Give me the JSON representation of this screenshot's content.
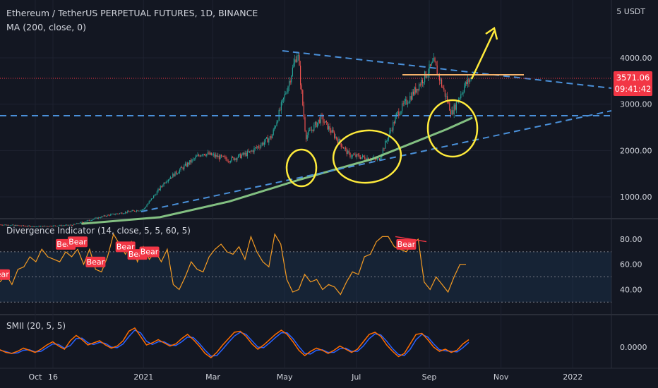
{
  "header": {
    "title": "Ethereum / TetherUS PERPETUAL FUTURES, 1D, BINANCE",
    "ma_label": "MA (200, close, 0)",
    "unit": "5 USDT"
  },
  "price_tag": {
    "price": "3571.06",
    "countdown": "09:41:42",
    "color": "#f23645"
  },
  "colors": {
    "background": "#131722",
    "grid": "#1e2230",
    "up": "#26a69a",
    "down": "#ef5350",
    "ma": "#8fd18c",
    "trendline": "#4a90d9",
    "annotation": "#ffeb3b",
    "resistance": "#f6b26b",
    "divergence": "#f59b22",
    "bear": "#f23645",
    "smii_signal": "#2962ff",
    "smii_main": "#ff6d00"
  },
  "chart_data": [
    {
      "type": "candlestick",
      "panel": "price",
      "symbol": "ETHUSDT",
      "timeframe": "1D",
      "y_ticks": [
        1000,
        2000,
        3000,
        4000
      ],
      "y_tick_labels": [
        "1000.00",
        "2000.00",
        "3000.00",
        "4000.00"
      ],
      "ylim": [
        550,
        4950
      ],
      "x_tick_labels": [
        "Oct",
        "16",
        "2021",
        "Mar",
        "May",
        "Jul",
        "Sep",
        "Nov",
        "2022"
      ],
      "last_price": 3571.06,
      "closes_approx": [
        {
          "date": "2020-09-01",
          "close": 400
        },
        {
          "date": "2020-10-01",
          "close": 360
        },
        {
          "date": "2020-11-01",
          "close": 390
        },
        {
          "date": "2020-12-01",
          "close": 600
        },
        {
          "date": "2021-01-01",
          "close": 730
        },
        {
          "date": "2021-01-20",
          "close": 1350
        },
        {
          "date": "2021-02-20",
          "close": 1950
        },
        {
          "date": "2021-03-15",
          "close": 1800
        },
        {
          "date": "2021-04-01",
          "close": 1950
        },
        {
          "date": "2021-04-20",
          "close": 2300
        },
        {
          "date": "2021-05-05",
          "close": 3500
        },
        {
          "date": "2021-05-12",
          "close": 4150
        },
        {
          "date": "2021-05-19",
          "close": 2300
        },
        {
          "date": "2021-06-01",
          "close": 2700
        },
        {
          "date": "2021-06-25",
          "close": 1900
        },
        {
          "date": "2021-07-20",
          "close": 1800
        },
        {
          "date": "2021-08-05",
          "close": 2800
        },
        {
          "date": "2021-08-20",
          "close": 3300
        },
        {
          "date": "2021-09-05",
          "close": 3900
        },
        {
          "date": "2021-09-20",
          "close": 2800
        },
        {
          "date": "2021-10-01",
          "close": 3400
        },
        {
          "date": "2021-10-07",
          "close": 3571
        }
      ],
      "ma200": [
        {
          "date": "2020-11-10",
          "value": 420
        },
        {
          "date": "2021-01-15",
          "value": 560
        },
        {
          "date": "2021-03-15",
          "value": 900
        },
        {
          "date": "2021-05-15",
          "value": 1380
        },
        {
          "date": "2021-07-15",
          "value": 1820
        },
        {
          "date": "2021-09-15",
          "value": 2450
        },
        {
          "date": "2021-10-07",
          "value": 2700
        }
      ]
    },
    {
      "type": "line",
      "panel": "divergence",
      "title": "Divergence Indicator (14, close, 5, 5, 60, 5)",
      "y_ticks": [
        40,
        60,
        80
      ],
      "y_tick_labels": [
        "40.00",
        "60.00",
        "80.00"
      ],
      "band": [
        30,
        70
      ],
      "ylim": [
        28,
        86
      ],
      "values": [
        46,
        52,
        44,
        56,
        58,
        66,
        62,
        72,
        66,
        64,
        62,
        70,
        66,
        72,
        60,
        72,
        56,
        54,
        66,
        84,
        76,
        68,
        78,
        62,
        74,
        64,
        70,
        62,
        72,
        44,
        40,
        50,
        62,
        56,
        54,
        66,
        72,
        76,
        70,
        68,
        74,
        64,
        82,
        70,
        62,
        58,
        84,
        76,
        48,
        38,
        40,
        52,
        46,
        48,
        40,
        44,
        42,
        36,
        46,
        54,
        52,
        66,
        68,
        78,
        82,
        82,
        74,
        72,
        70,
        76,
        80,
        46,
        40,
        50,
        44,
        38,
        50,
        60,
        60
      ],
      "bear_labels": [
        {
          "text": "Bear",
          "index": 0
        },
        {
          "text": "Bear",
          "index": 11
        },
        {
          "text": "Bear",
          "index": 13
        },
        {
          "text": "Bear",
          "index": 16
        },
        {
          "text": "Bear",
          "index": 21
        },
        {
          "text": "Bear",
          "index": 23
        },
        {
          "text": "Bear",
          "index": 25
        },
        {
          "text": "Bear",
          "index": 68
        }
      ]
    },
    {
      "type": "line",
      "panel": "smii",
      "title": "SMII (20, 5, 5)",
      "y_ticks": [
        0
      ],
      "y_tick_labels": [
        "0.0000"
      ],
      "ylim": [
        -0.55,
        0.55
      ],
      "values": [
        -0.05,
        -0.1,
        -0.12,
        -0.08,
        -0.02,
        -0.06,
        -0.1,
        -0.04,
        0.04,
        0.1,
        0.02,
        -0.04,
        0.12,
        0.22,
        0.14,
        0.04,
        0.08,
        0.12,
        0.04,
        -0.02,
        0.02,
        0.12,
        0.3,
        0.36,
        0.2,
        0.04,
        0.08,
        0.14,
        0.08,
        0.02,
        0.06,
        0.16,
        0.24,
        0.14,
        0.02,
        -0.12,
        -0.2,
        -0.1,
        0.04,
        0.16,
        0.28,
        0.3,
        0.2,
        0.06,
        -0.04,
        0.04,
        0.14,
        0.24,
        0.32,
        0.24,
        0.1,
        -0.06,
        -0.16,
        -0.08,
        -0.02,
        -0.06,
        -0.12,
        -0.06,
        0.02,
        -0.04,
        -0.1,
        -0.04,
        0.1,
        0.24,
        0.28,
        0.2,
        0.04,
        -0.08,
        -0.18,
        -0.12,
        0.06,
        0.24,
        0.26,
        0.14,
        0.0,
        -0.08,
        -0.04,
        -0.1,
        -0.06,
        0.06,
        0.14
      ]
    }
  ]
}
